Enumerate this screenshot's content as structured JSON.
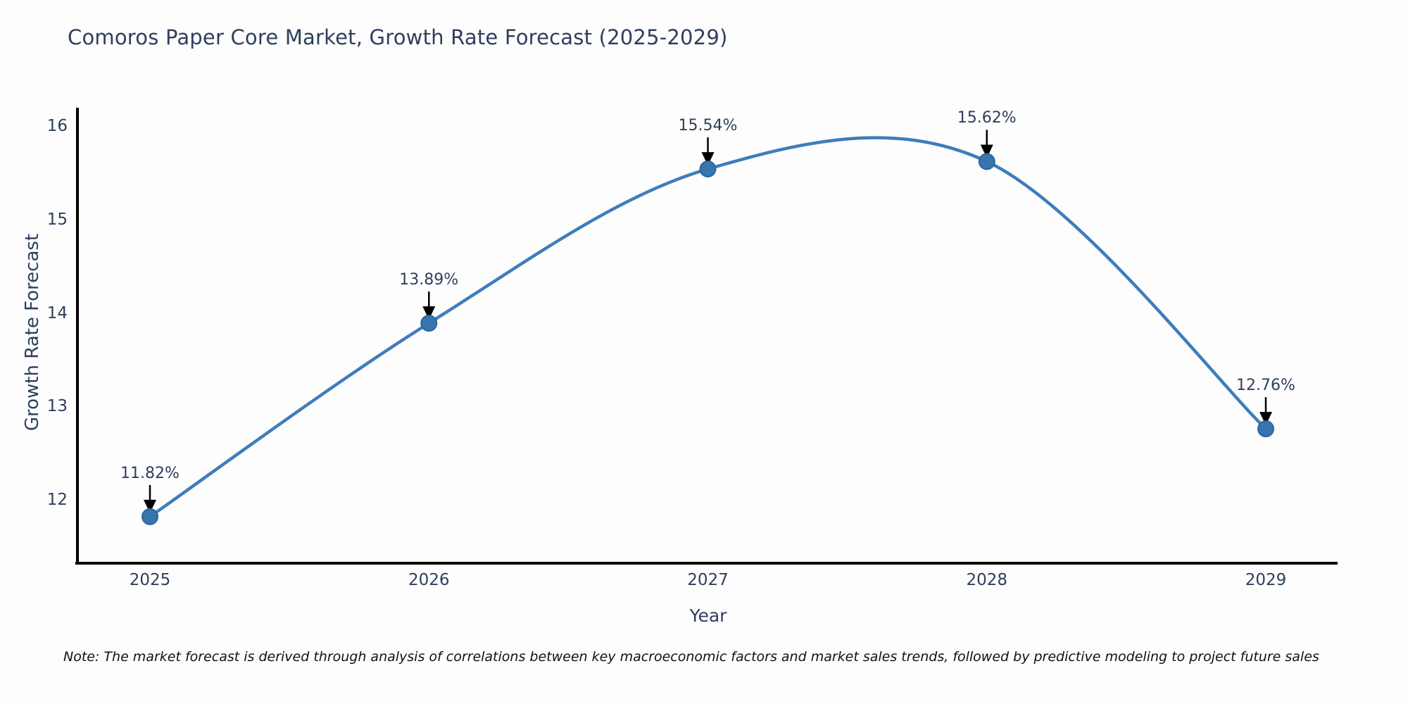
{
  "chart_data": {
    "type": "line",
    "title": "Comoros Paper Core Market, Growth Rate Forecast (2025-2029)",
    "xlabel": "Year",
    "ylabel": "Growth Rate Forecast",
    "x": [
      2025,
      2026,
      2027,
      2028,
      2029
    ],
    "values": [
      11.82,
      13.89,
      15.54,
      15.62,
      12.76
    ],
    "point_labels": [
      "11.82%",
      "13.89%",
      "15.54%",
      "15.62%",
      "12.76%"
    ],
    "yticks": [
      12,
      13,
      14,
      15,
      16
    ],
    "ylim": [
      11.32,
      16.13
    ],
    "xlim": [
      2024.74,
      2029.26
    ],
    "grid": false,
    "legend": null,
    "smooth_spline": true,
    "colors": {
      "line": "#3E7DBA",
      "marker_fill": "#3875AE",
      "marker_edge": "#2C669E",
      "axis_spine": "#000000",
      "annotation_arrow": "#000000",
      "text": "#2E3F5C",
      "note_text": "#111111",
      "background": "#FDFDFD"
    }
  },
  "note": {
    "text": "Note: The market forecast is derived through analysis of correlations between key macroeconomic factors and market sales trends, followed by predictive modeling to project future sales"
  }
}
